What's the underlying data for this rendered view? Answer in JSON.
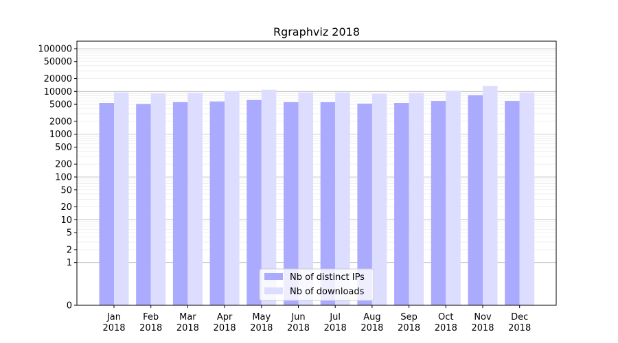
{
  "chart_data": {
    "type": "bar",
    "title": "Rgraphviz 2018",
    "xlabel": "",
    "ylabel": "",
    "yscale": "symlog",
    "ylim": [
      0,
      150000
    ],
    "y_ticks": [
      0,
      1,
      2,
      5,
      10,
      20,
      50,
      100,
      200,
      500,
      1000,
      2000,
      5000,
      10000,
      20000,
      50000,
      100000
    ],
    "y_tick_labels": [
      "0",
      "1",
      "2",
      "5",
      "10",
      "20",
      "50",
      "100",
      "200",
      "500",
      "1000",
      "2000",
      "5000",
      "10000",
      "20000",
      "50000",
      "100000"
    ],
    "grid": true,
    "legend_position": "bottom-center",
    "categories": [
      {
        "month": "Jan",
        "year": "2018"
      },
      {
        "month": "Feb",
        "year": "2018"
      },
      {
        "month": "Mar",
        "year": "2018"
      },
      {
        "month": "Apr",
        "year": "2018"
      },
      {
        "month": "May",
        "year": "2018"
      },
      {
        "month": "Jun",
        "year": "2018"
      },
      {
        "month": "Jul",
        "year": "2018"
      },
      {
        "month": "Aug",
        "year": "2018"
      },
      {
        "month": "Sep",
        "year": "2018"
      },
      {
        "month": "Oct",
        "year": "2018"
      },
      {
        "month": "Nov",
        "year": "2018"
      },
      {
        "month": "Dec",
        "year": "2018"
      }
    ],
    "series": [
      {
        "name": "Nb of distinct IPs",
        "color": "#aaaaff",
        "values": [
          5400,
          5100,
          5600,
          5800,
          6300,
          5600,
          5600,
          5200,
          5400,
          6000,
          8200,
          6000
        ]
      },
      {
        "name": "Nb of downloads",
        "color": "#ddddff",
        "values": [
          9500,
          9000,
          9300,
          10300,
          11000,
          9500,
          9500,
          8800,
          9300,
          10400,
          13500,
          9500
        ]
      }
    ]
  }
}
